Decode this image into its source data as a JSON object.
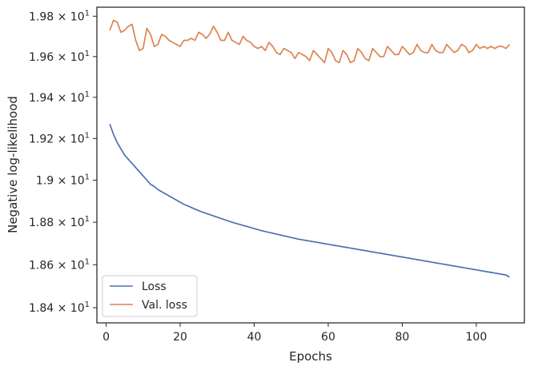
{
  "chart_data": {
    "type": "line",
    "title": "",
    "xlabel": "Epochs",
    "ylabel": "Negative log-likelihood",
    "xlim": [
      -2.5,
      113
    ],
    "ylim": [
      18.33,
      19.845
    ],
    "yscale": "log",
    "grid": false,
    "legend_position": "lower-left",
    "x_ticks": [
      {
        "value": 0,
        "label": "0"
      },
      {
        "value": 20,
        "label": "20"
      },
      {
        "value": 40,
        "label": "40"
      },
      {
        "value": 60,
        "label": "60"
      },
      {
        "value": 80,
        "label": "80"
      },
      {
        "value": 100,
        "label": "100"
      }
    ],
    "y_ticks": [
      {
        "value": 18.4,
        "mantissa": "1.84",
        "base": "10",
        "exponent": "1"
      },
      {
        "value": 18.6,
        "mantissa": "1.86",
        "base": "10",
        "exponent": "1"
      },
      {
        "value": 18.8,
        "mantissa": "1.88",
        "base": "10",
        "exponent": "1"
      },
      {
        "value": 19.0,
        "mantissa": "1.9",
        "base": "10",
        "exponent": "1"
      },
      {
        "value": 19.2,
        "mantissa": "1.92",
        "base": "10",
        "exponent": "1"
      },
      {
        "value": 19.4,
        "mantissa": "1.94",
        "base": "10",
        "exponent": "1"
      },
      {
        "value": 19.6,
        "mantissa": "1.96",
        "base": "10",
        "exponent": "1"
      },
      {
        "value": 19.8,
        "mantissa": "1.98",
        "base": "10",
        "exponent": "1"
      }
    ],
    "x_start": 1,
    "series": [
      {
        "name": "Loss",
        "color": "#4c72b0",
        "values": [
          19.27,
          19.22,
          19.18,
          19.15,
          19.12,
          19.1,
          19.08,
          19.06,
          19.04,
          19.02,
          19.0,
          18.98,
          18.97,
          18.955,
          18.945,
          18.935,
          18.925,
          18.915,
          18.905,
          18.895,
          18.885,
          18.878,
          18.87,
          18.862,
          18.855,
          18.848,
          18.842,
          18.836,
          18.83,
          18.824,
          18.818,
          18.812,
          18.806,
          18.8,
          18.795,
          18.79,
          18.785,
          18.78,
          18.775,
          18.77,
          18.765,
          18.76,
          18.756,
          18.752,
          18.748,
          18.744,
          18.74,
          18.736,
          18.732,
          18.728,
          18.724,
          18.72,
          18.717,
          18.714,
          18.711,
          18.708,
          18.705,
          18.702,
          18.699,
          18.696,
          18.693,
          18.69,
          18.687,
          18.684,
          18.681,
          18.678,
          18.675,
          18.672,
          18.669,
          18.666,
          18.663,
          18.66,
          18.657,
          18.654,
          18.651,
          18.648,
          18.645,
          18.642,
          18.639,
          18.636,
          18.633,
          18.63,
          18.627,
          18.624,
          18.621,
          18.618,
          18.615,
          18.612,
          18.609,
          18.606,
          18.603,
          18.6,
          18.597,
          18.594,
          18.591,
          18.588,
          18.585,
          18.582,
          18.579,
          18.576,
          18.573,
          18.57,
          18.567,
          18.564,
          18.561,
          18.558,
          18.555,
          18.552,
          18.542
        ]
      },
      {
        "name": "Val. loss",
        "color": "#dd8452",
        "values": [
          19.73,
          19.78,
          19.77,
          19.72,
          19.73,
          19.75,
          19.76,
          19.68,
          19.63,
          19.64,
          19.74,
          19.71,
          19.65,
          19.66,
          19.71,
          19.7,
          19.68,
          19.67,
          19.66,
          19.65,
          19.68,
          19.68,
          19.69,
          19.68,
          19.72,
          19.71,
          19.69,
          19.71,
          19.75,
          19.72,
          19.68,
          19.68,
          19.72,
          19.68,
          19.67,
          19.66,
          19.7,
          19.68,
          19.67,
          19.65,
          19.64,
          19.65,
          19.63,
          19.67,
          19.65,
          19.62,
          19.61,
          19.64,
          19.63,
          19.62,
          19.59,
          19.62,
          19.61,
          19.6,
          19.58,
          19.63,
          19.61,
          19.59,
          19.57,
          19.64,
          19.62,
          19.58,
          19.57,
          19.63,
          19.61,
          19.57,
          19.58,
          19.64,
          19.62,
          19.59,
          19.58,
          19.64,
          19.62,
          19.6,
          19.6,
          19.65,
          19.63,
          19.61,
          19.61,
          19.65,
          19.63,
          19.61,
          19.62,
          19.66,
          19.63,
          19.62,
          19.62,
          19.66,
          19.63,
          19.62,
          19.62,
          19.66,
          19.64,
          19.62,
          19.63,
          19.66,
          19.65,
          19.62,
          19.63,
          19.66,
          19.64,
          19.65,
          19.64,
          19.65,
          19.64,
          19.65,
          19.65,
          19.64,
          19.66
        ]
      }
    ]
  }
}
